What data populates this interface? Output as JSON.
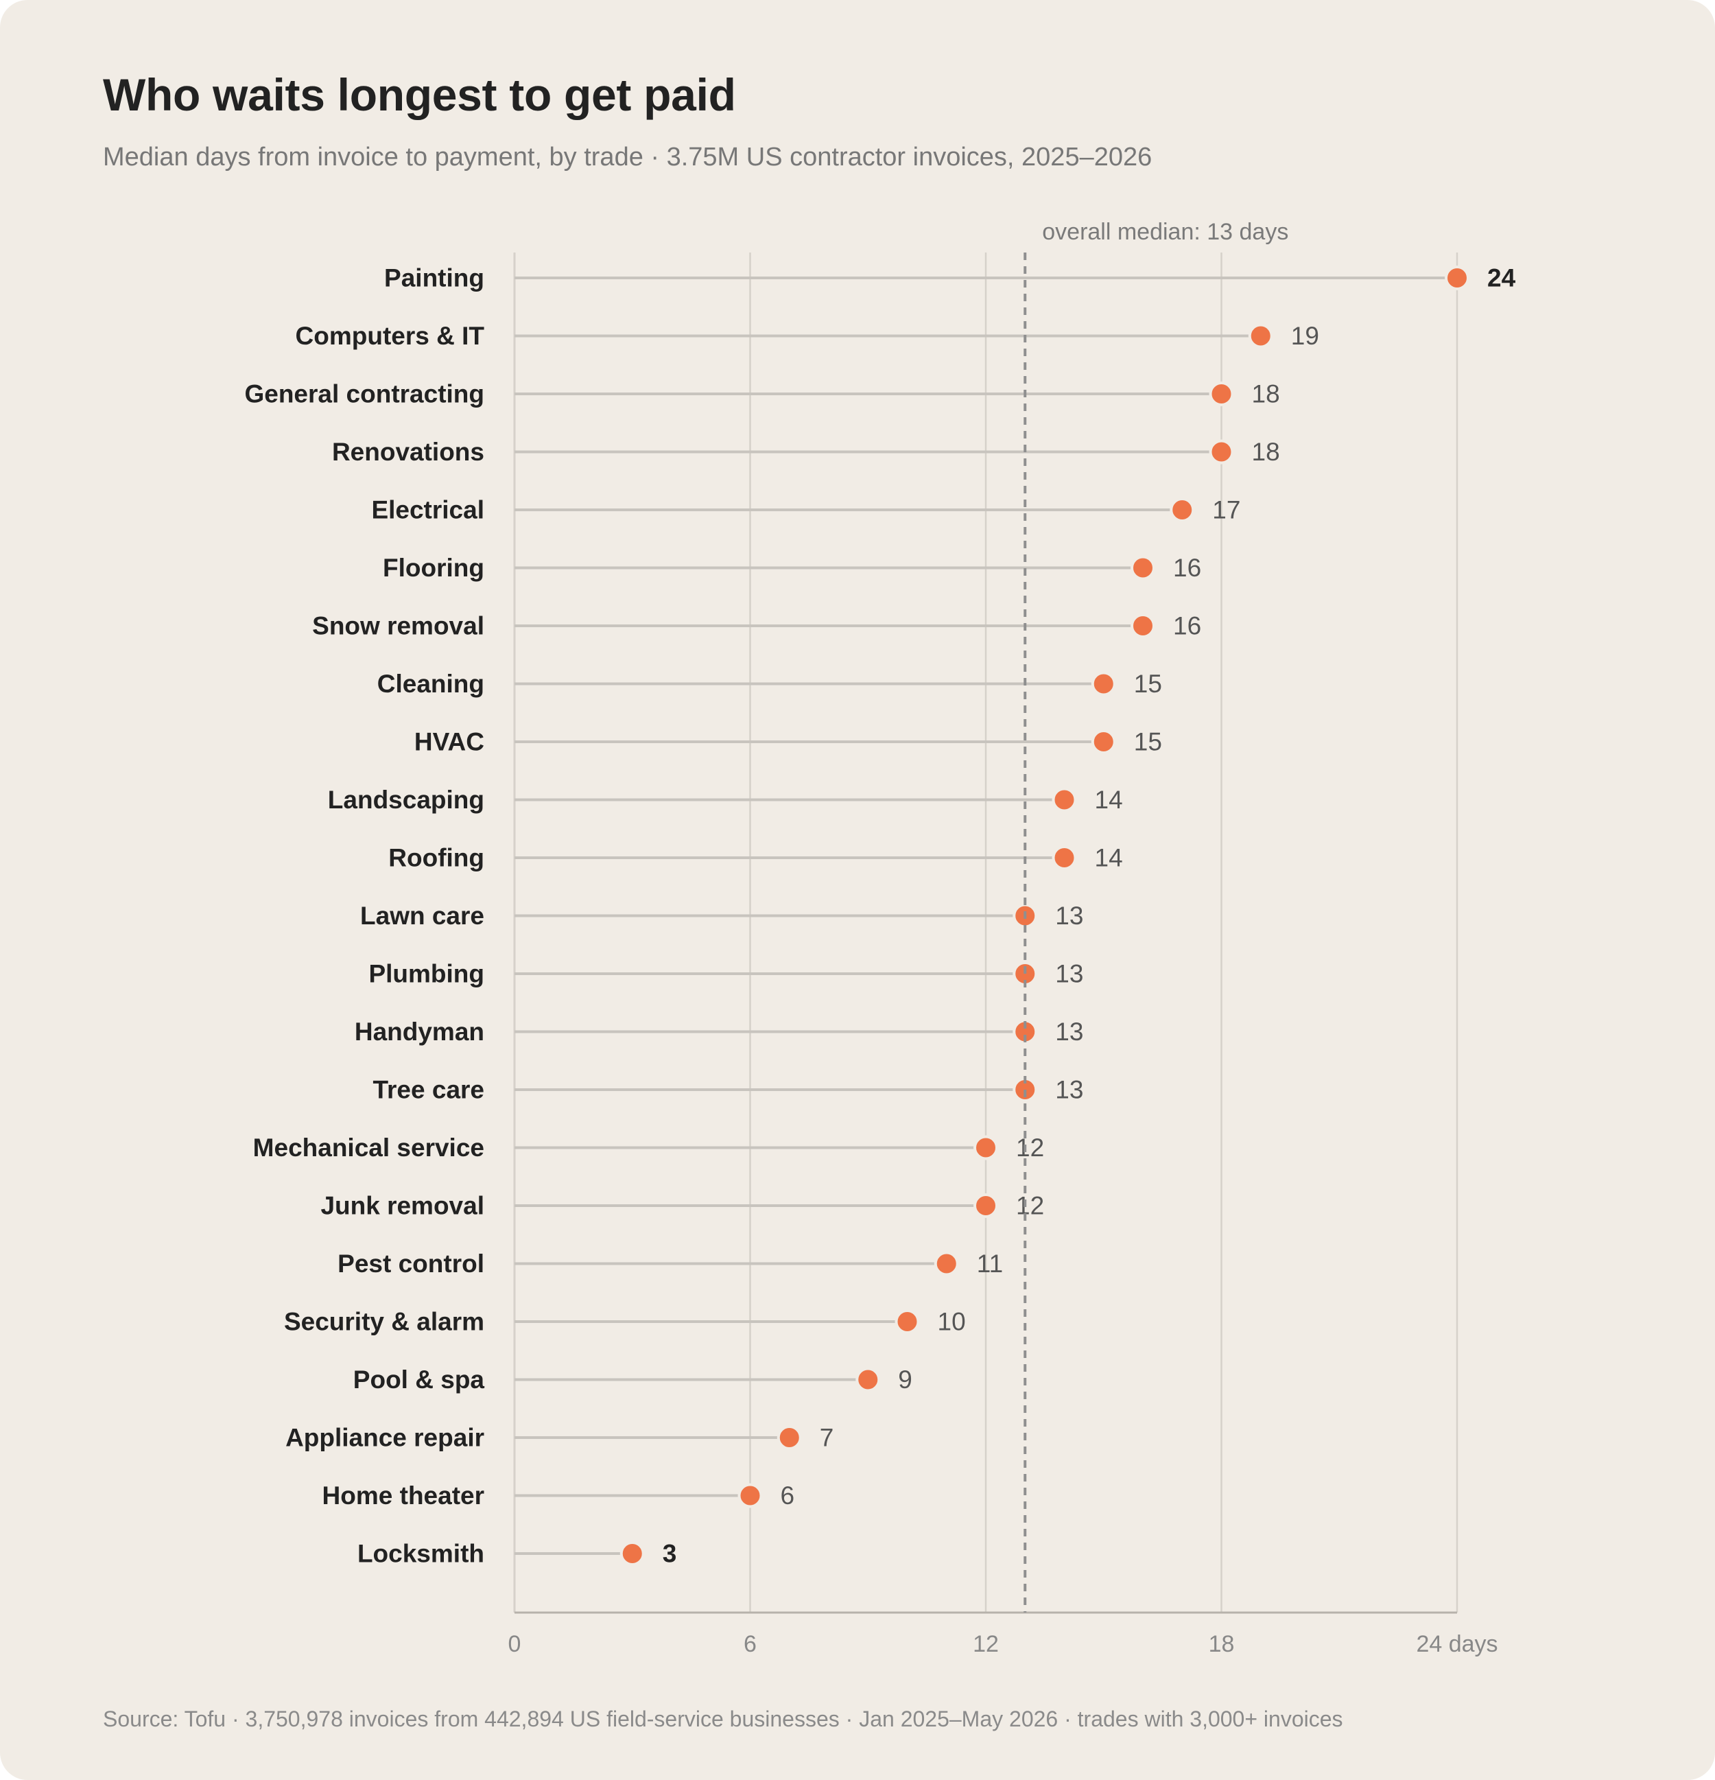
{
  "title": "Who waits longest to get paid",
  "subtitle": "Median days from invoice to payment, by trade · 3.75M US contractor invoices, 2025–2026",
  "source": "Source: Tofu · 3,750,978 invoices from 442,894 US field-service businesses · Jan 2025–May 2026 · trades with 3,000+ invoices",
  "colors": {
    "background": "#f1ece5",
    "dot": "#ee7446",
    "stem": "#c8c4be",
    "gridline": "#d6d1ca",
    "reference_line": "#8f8f8f"
  },
  "chart_data": {
    "type": "lollipop",
    "orientation": "horizontal",
    "categories": [
      "Painting",
      "Computers & IT",
      "General contracting",
      "Renovations",
      "Electrical",
      "Flooring",
      "Snow removal",
      "Cleaning",
      "HVAC",
      "Landscaping",
      "Roofing",
      "Lawn care",
      "Plumbing",
      "Handyman",
      "Tree care",
      "Mechanical service",
      "Junk removal",
      "Pest control",
      "Security & alarm",
      "Pool & spa",
      "Appliance repair",
      "Home theater",
      "Locksmith"
    ],
    "values": [
      24,
      19,
      18,
      18,
      17,
      16,
      16,
      15,
      15,
      14,
      14,
      13,
      13,
      13,
      13,
      12,
      12,
      11,
      10,
      9,
      7,
      6,
      3
    ],
    "emphasized": [
      "Painting",
      "Locksmith"
    ],
    "xlim": [
      0,
      24
    ],
    "xticks": [
      0,
      6,
      12,
      18,
      24
    ],
    "xtick_labels": [
      "0",
      "6",
      "12",
      "18",
      "24 days"
    ],
    "grid": "vertical",
    "reference_line": {
      "value": 13,
      "label": "overall median: 13 days",
      "style": "dashed"
    }
  }
}
